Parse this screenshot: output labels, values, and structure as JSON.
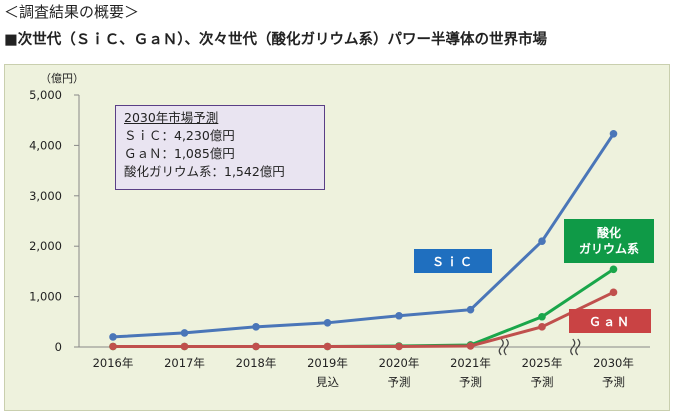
{
  "heading": "＜調査結果の概要＞",
  "subheading": "■次世代（ＳｉＣ、ＧａＮ）、次々世代（酸化ガリウム系）パワー半導体の世界市場",
  "callout": {
    "title": "2030年市場予測",
    "lines": [
      "ＳｉＣ：4,230億円",
      "ＧａＮ：1,085億円",
      "酸化ガリウム系：1,542億円"
    ]
  },
  "tags": {
    "sic": "ＳｉＣ",
    "oxide_line1": "酸化",
    "oxide_line2": "ガリウム系",
    "gan": "ＧａＮ"
  },
  "colors": {
    "sic": "#4a76b8",
    "oxide": "#1aa64a",
    "gan": "#c0504d"
  },
  "chart_data": {
    "type": "line",
    "ylabel": "（億円）",
    "ylim": [
      0,
      5000
    ],
    "yticks": [
      "0",
      "1,000",
      "2,000",
      "3,000",
      "4,000",
      "5,000"
    ],
    "categories": [
      [
        "2016年",
        ""
      ],
      [
        "2017年",
        ""
      ],
      [
        "2018年",
        ""
      ],
      [
        "2019年",
        "見込"
      ],
      [
        "2020年",
        "予測"
      ],
      [
        "2021年",
        "予測"
      ],
      [
        "2025年",
        "予測"
      ],
      [
        "2030年",
        "予測"
      ]
    ],
    "axis_breaks_after": [
      5,
      6
    ],
    "series": [
      {
        "key": "sic",
        "values": [
          200,
          280,
          400,
          480,
          620,
          740,
          2100,
          4230
        ]
      },
      {
        "key": "oxide",
        "values": [
          10,
          10,
          10,
          10,
          20,
          40,
          600,
          1542
        ]
      },
      {
        "key": "gan",
        "values": [
          10,
          10,
          10,
          10,
          10,
          20,
          400,
          1085
        ]
      }
    ]
  }
}
